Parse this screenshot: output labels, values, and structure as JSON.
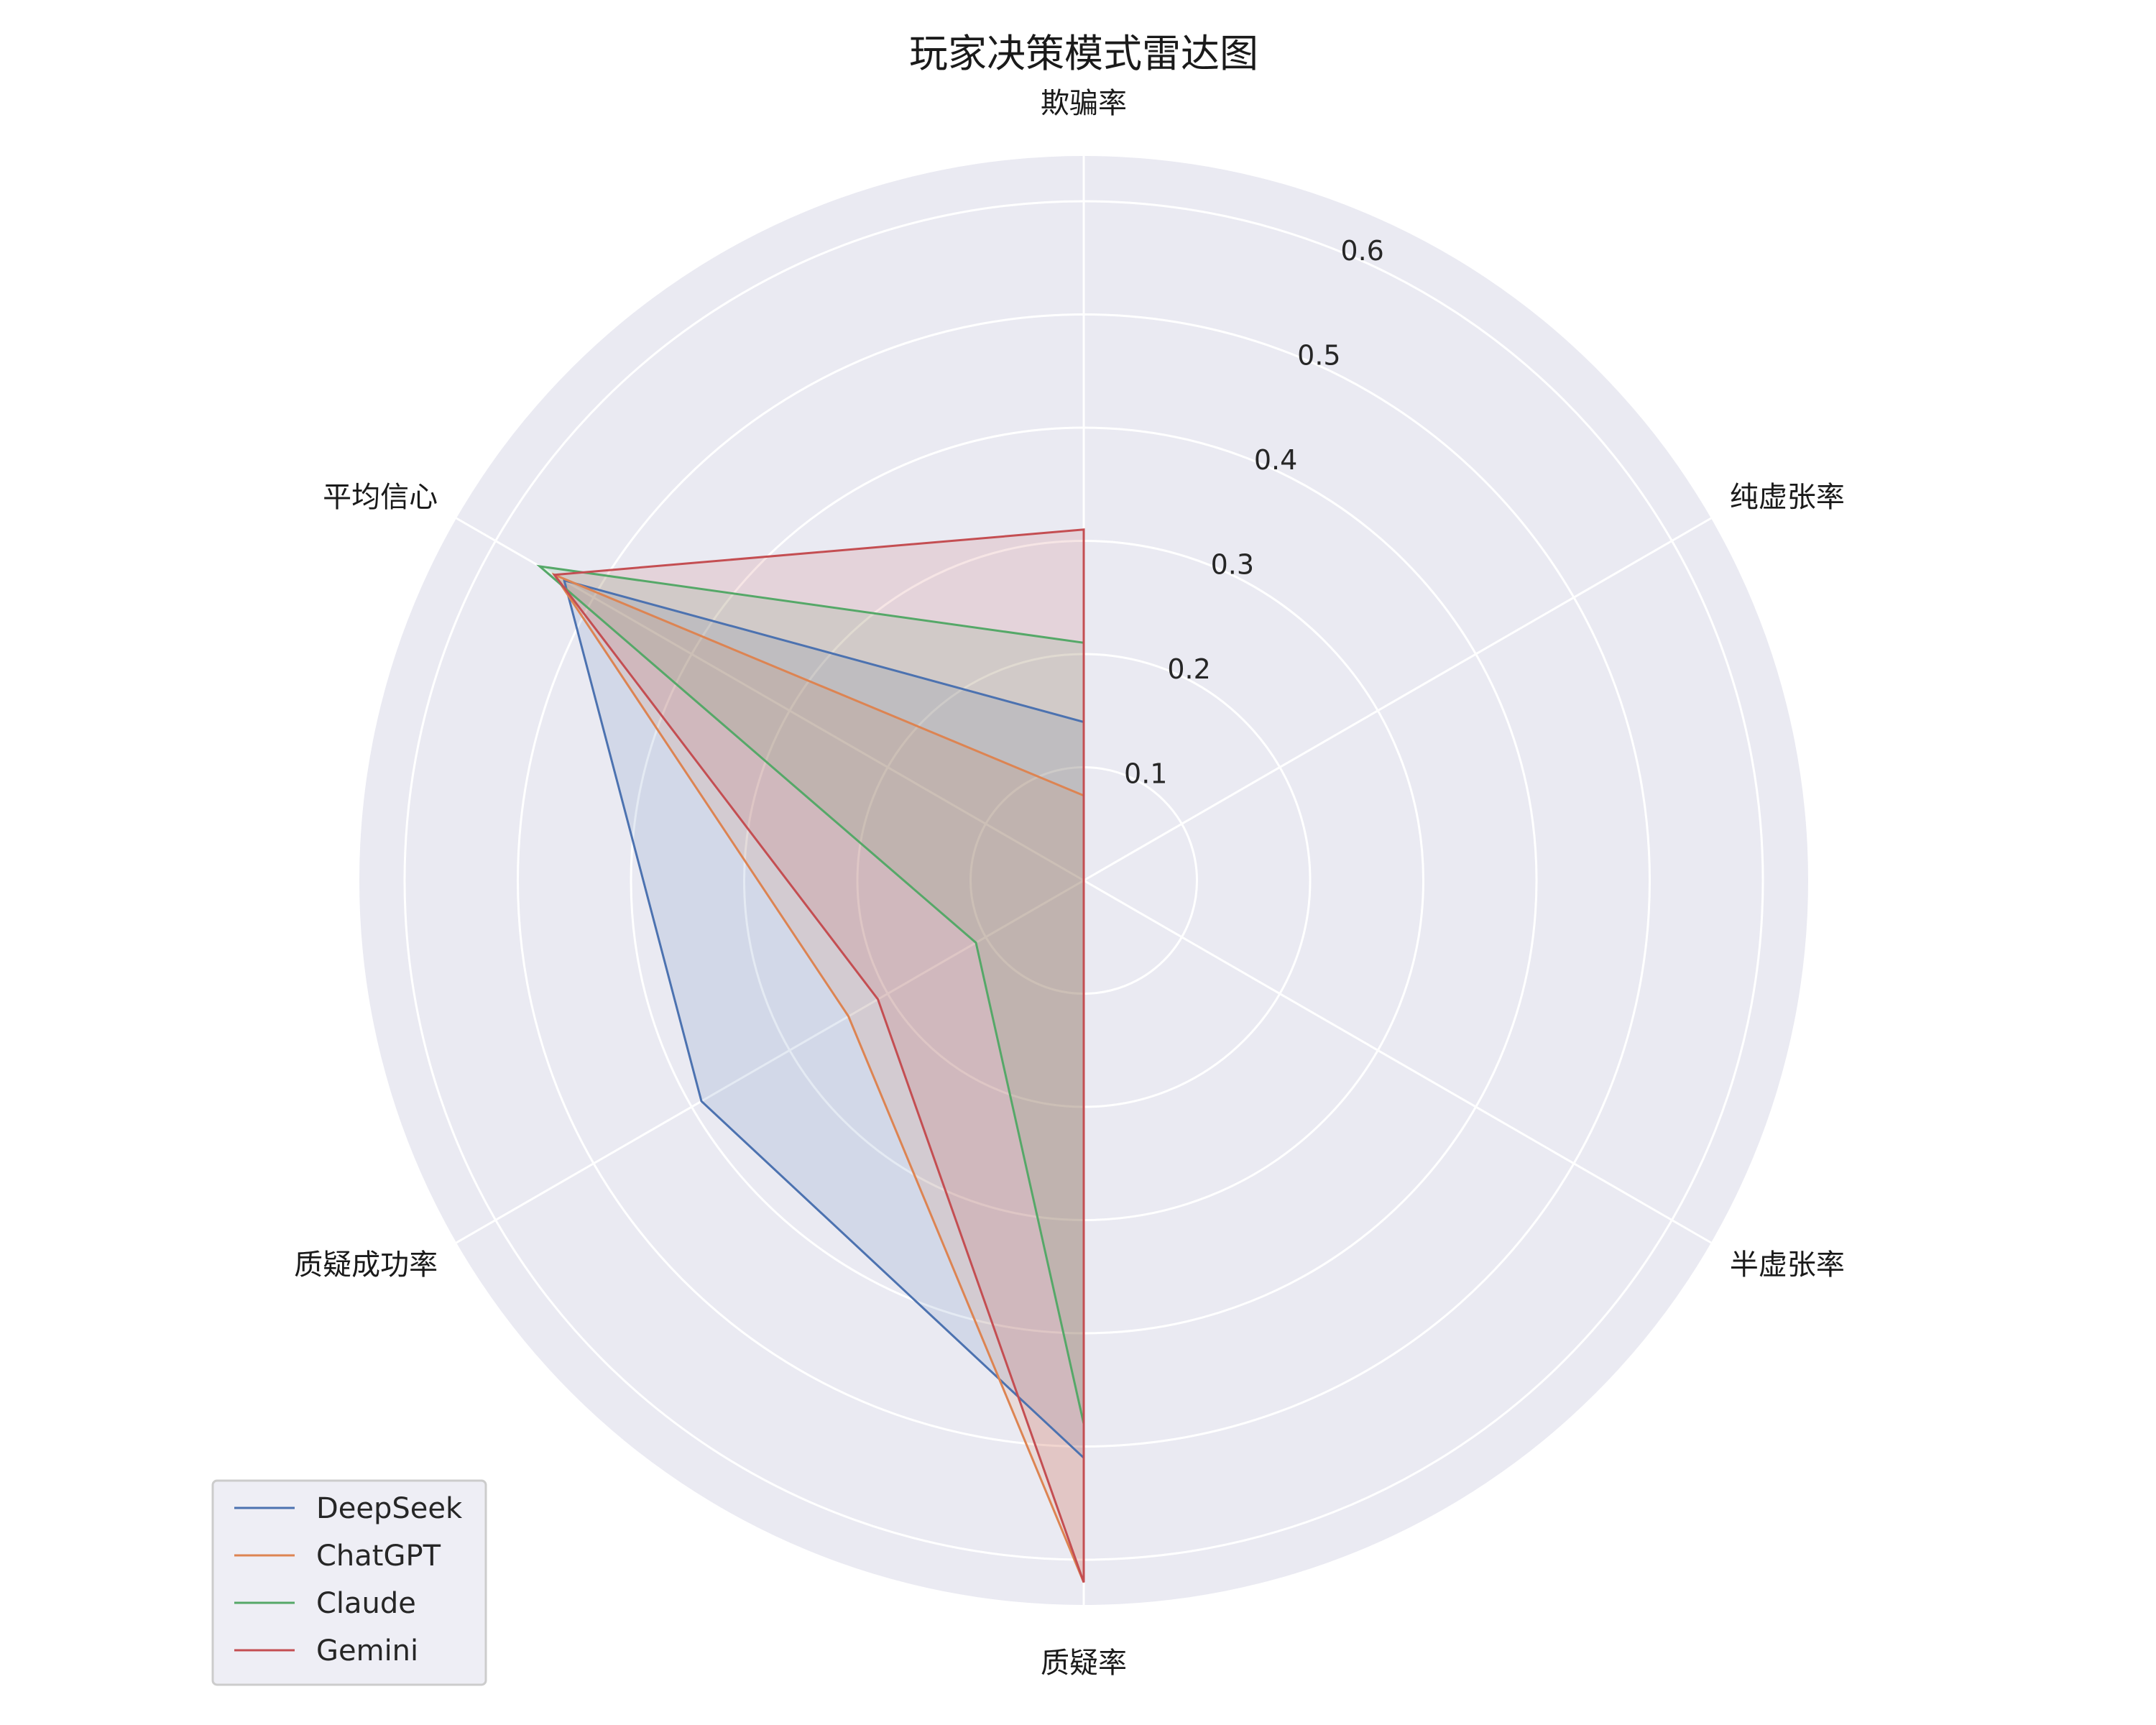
{
  "chart_data": {
    "type": "radar",
    "title": "玩家决策模式雷达图",
    "axes": [
      "欺骗率",
      "纯虚张率",
      "半虚张率",
      "质疑率",
      "质疑成功率",
      "平均信心"
    ],
    "rlim": [
      0,
      0.64
    ],
    "rticks": [
      0.1,
      0.2,
      0.3,
      0.4,
      0.5,
      0.6
    ],
    "rtick_labels": [
      "0.1",
      "0.2",
      "0.3",
      "0.4",
      "0.5",
      "0.6"
    ],
    "grid": true,
    "legend_position": "lower-left",
    "series": [
      {
        "name": "DeepSeek",
        "color": "#4c72b0",
        "values": [
          0.14,
          0.0,
          0.0,
          0.51,
          0.39,
          0.53
        ]
      },
      {
        "name": "ChatGPT",
        "color": "#dd8452",
        "values": [
          0.075,
          0.0,
          0.0,
          0.62,
          0.24,
          0.54
        ]
      },
      {
        "name": "Claude",
        "color": "#55a868",
        "values": [
          0.21,
          0.0,
          0.0,
          0.48,
          0.11,
          0.555
        ]
      },
      {
        "name": "Gemini",
        "color": "#c44e52",
        "values": [
          0.31,
          0.0,
          0.0,
          0.62,
          0.21,
          0.54
        ]
      }
    ]
  }
}
